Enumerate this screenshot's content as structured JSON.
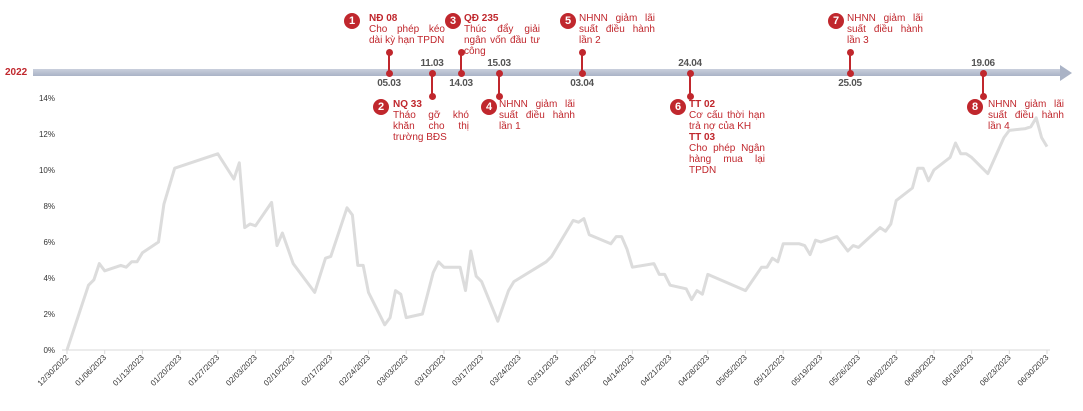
{
  "timeline": {
    "year_label": "2022",
    "accent_color": "#c0272d",
    "events": [
      {
        "num": "1",
        "date": "05.03",
        "side": "above",
        "blocks": [
          {
            "title": "NĐ 08",
            "text": "Cho phép kéo dài kỳ hạn TPDN"
          }
        ]
      },
      {
        "num": "2",
        "date": "11.03",
        "side": "below",
        "blocks": [
          {
            "title": "NQ 33",
            "text": "Tháo gỡ khó khăn cho thị trường BĐS"
          }
        ]
      },
      {
        "num": "3",
        "date": "14.03",
        "side": "above",
        "blocks": [
          {
            "title": "QĐ 235",
            "text": "Thúc đẩy giải ngân vốn đầu tư công"
          }
        ]
      },
      {
        "num": "4",
        "date": "15.03",
        "side": "below",
        "blocks": [
          {
            "title": "",
            "text": "NHNN giảm lãi suất điều hành lần 1"
          }
        ]
      },
      {
        "num": "5",
        "date": "03.04",
        "side": "above",
        "blocks": [
          {
            "title": "",
            "text": "NHNN giảm lãi suất điều hành lần 2"
          }
        ]
      },
      {
        "num": "6",
        "date": "24.04",
        "side": "below",
        "blocks": [
          {
            "title": "TT 02",
            "text": "Cơ cấu thời hạn trả nợ của KH"
          },
          {
            "title": "TT 03",
            "text": "Cho phép Ngân hàng mua lại TPDN"
          }
        ]
      },
      {
        "num": "7",
        "date": "25.05",
        "side": "above",
        "blocks": [
          {
            "title": "",
            "text": "NHNN giảm lãi suất điều hành lần 3"
          }
        ]
      },
      {
        "num": "8",
        "date": "19.06",
        "side": "below",
        "blocks": [
          {
            "title": "",
            "text": "NHNN giảm lãi suất điều hành lần 4"
          }
        ]
      }
    ]
  },
  "chart_data": {
    "type": "line",
    "title": "",
    "xlabel": "",
    "ylabel": "",
    "ylim": [
      0,
      14
    ],
    "yticks": [
      "0%",
      "2%",
      "4%",
      "6%",
      "8%",
      "10%",
      "12%",
      "14%"
    ],
    "xlim": [
      "2022-12-30",
      "2023-06-30"
    ],
    "xticks": [
      "12/30/2022",
      "01/06/2023",
      "01/13/2023",
      "01/20/2023",
      "01/27/2023",
      "02/03/2023",
      "02/10/2023",
      "02/17/2023",
      "02/24/2023",
      "03/03/2023",
      "03/10/2023",
      "03/17/2023",
      "03/24/2023",
      "03/31/2023",
      "04/07/2023",
      "04/14/2023",
      "04/21/2023",
      "04/28/2023",
      "05/05/2023",
      "05/12/2023",
      "05/19/2023",
      "05/26/2023",
      "06/02/2023",
      "06/09/2023",
      "06/16/2023",
      "06/23/2023",
      "06/30/2023"
    ],
    "grid": false,
    "line_color": "#dcdcdc",
    "series": [
      {
        "x": [
          "2022-12-30",
          "2023-01-03",
          "2023-01-04",
          "2023-01-05",
          "2023-01-06",
          "2023-01-09",
          "2023-01-10",
          "2023-01-11",
          "2023-01-12",
          "2023-01-13",
          "2023-01-16",
          "2023-01-17",
          "2023-01-19",
          "2023-01-27",
          "2023-01-30",
          "2023-01-31",
          "2023-02-01",
          "2023-02-02",
          "2023-02-03",
          "2023-02-06",
          "2023-02-07",
          "2023-02-08",
          "2023-02-10",
          "2023-02-14",
          "2023-02-16",
          "2023-02-17",
          "2023-02-20",
          "2023-02-21",
          "2023-02-22",
          "2023-02-23",
          "2023-02-24",
          "2023-02-27",
          "2023-02-28",
          "2023-03-01",
          "2023-03-02",
          "2023-03-03",
          "2023-03-06",
          "2023-03-08",
          "2023-03-09",
          "2023-03-10",
          "2023-03-13",
          "2023-03-14",
          "2023-03-15",
          "2023-03-16",
          "2023-03-17",
          "2023-03-20",
          "2023-03-22",
          "2023-03-23",
          "2023-03-29",
          "2023-03-30",
          "2023-04-03",
          "2023-04-04",
          "2023-04-05",
          "2023-04-06",
          "2023-04-10",
          "2023-04-11",
          "2023-04-12",
          "2023-04-13",
          "2023-04-14",
          "2023-04-18",
          "2023-04-19",
          "2023-04-20",
          "2023-04-21",
          "2023-04-24",
          "2023-04-25",
          "2023-04-26",
          "2023-04-27",
          "2023-04-28",
          "2023-05-05",
          "2023-05-08",
          "2023-05-09",
          "2023-05-10",
          "2023-05-11",
          "2023-05-12",
          "2023-05-15",
          "2023-05-16",
          "2023-05-17",
          "2023-05-18",
          "2023-05-19",
          "2023-05-22",
          "2023-05-24",
          "2023-05-25",
          "2023-05-26",
          "2023-05-30",
          "2023-05-31",
          "2023-06-01",
          "2023-06-02",
          "2023-06-05",
          "2023-06-06",
          "2023-06-07",
          "2023-06-08",
          "2023-06-09",
          "2023-06-12",
          "2023-06-13",
          "2023-06-14",
          "2023-06-15",
          "2023-06-16",
          "2023-06-19",
          "2023-06-22",
          "2023-06-23",
          "2023-06-26",
          "2023-06-27",
          "2023-06-28",
          "2023-06-29",
          "2023-06-30"
        ],
        "y": [
          0,
          3.6,
          3.9,
          4.8,
          4.4,
          4.7,
          4.6,
          4.9,
          4.9,
          5.4,
          6.0,
          8.1,
          10.1,
          10.9,
          9.5,
          10.4,
          6.8,
          7.0,
          6.9,
          8.2,
          5.8,
          6.5,
          4.8,
          3.2,
          5.1,
          5.2,
          7.9,
          7.5,
          4.7,
          4.7,
          3.2,
          1.4,
          1.8,
          3.3,
          3.1,
          1.8,
          2.0,
          4.3,
          4.9,
          4.6,
          4.6,
          3.3,
          5.5,
          4.1,
          3.8,
          1.6,
          3.3,
          3.8,
          4.9,
          5.2,
          7.2,
          7.1,
          7.3,
          6.4,
          5.9,
          6.3,
          6.3,
          5.6,
          4.6,
          4.8,
          4.2,
          4.2,
          3.6,
          3.4,
          2.8,
          3.3,
          3.1,
          4.2,
          3.3,
          4.6,
          4.6,
          5.1,
          4.9,
          5.9,
          5.9,
          5.8,
          5.3,
          6.1,
          6.0,
          6.3,
          5.5,
          5.8,
          5.7,
          6.8,
          6.6,
          7.0,
          8.3,
          9.0,
          10.1,
          10.1,
          9.4,
          10.0,
          10.7,
          11.5,
          10.9,
          10.9,
          10.7,
          9.8,
          11.8,
          12.2,
          12.3,
          12.4,
          12.9,
          11.8,
          11.3
        ]
      }
    ]
  }
}
